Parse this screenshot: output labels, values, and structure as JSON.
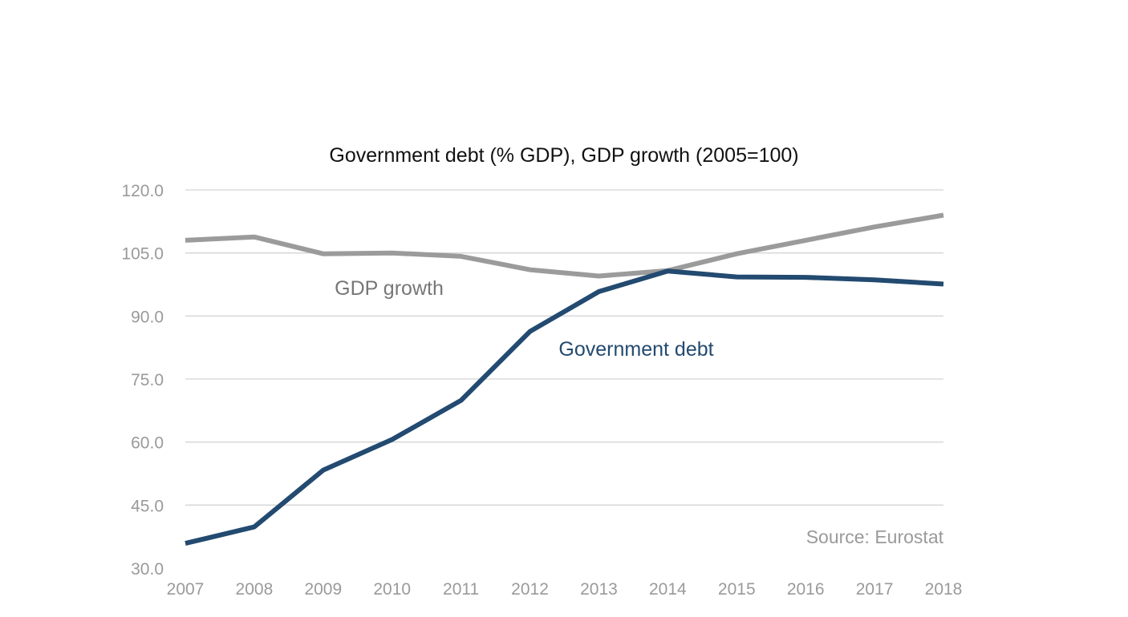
{
  "chart_data": {
    "type": "line",
    "title": "Government debt (% GDP), GDP growth (2005=100)",
    "x": [
      "2007",
      "2008",
      "2009",
      "2010",
      "2011",
      "2012",
      "2013",
      "2014",
      "2015",
      "2016",
      "2017",
      "2018"
    ],
    "ylim": [
      30,
      120
    ],
    "yticks": [
      "30.0",
      "45.0",
      "60.0",
      "75.0",
      "90.0",
      "105.0",
      "120.0"
    ],
    "grid": true,
    "series": [
      {
        "name": "GDP growth",
        "color": "#9b9b9b",
        "values": [
          108.0,
          108.8,
          104.8,
          105.0,
          104.2,
          101.0,
          99.5,
          100.8,
          104.8,
          108.0,
          111.2,
          114.0
        ]
      },
      {
        "name": "Government debt",
        "color": "#234a70",
        "values": [
          35.9,
          39.8,
          53.3,
          60.6,
          69.9,
          86.3,
          95.8,
          100.7,
          99.3,
          99.2,
          98.6,
          97.6
        ]
      }
    ],
    "annotation": "Source: Eurostat"
  }
}
